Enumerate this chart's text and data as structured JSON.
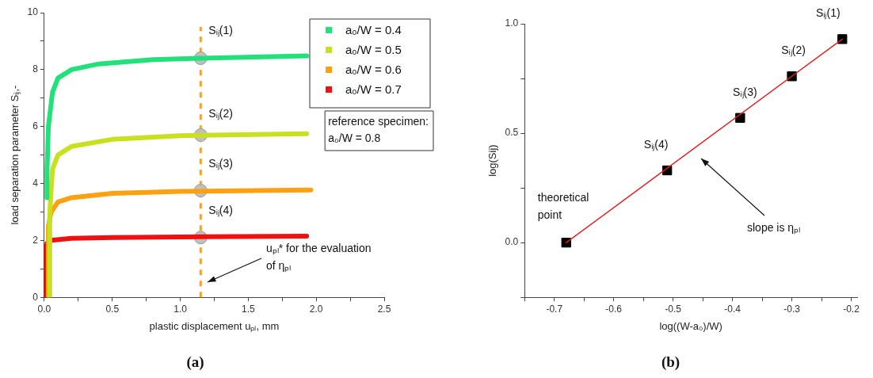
{
  "chart_data": [
    {
      "type": "line",
      "title": "(a)",
      "xlabel": "plastic displacement uₚₗ, mm",
      "ylabel": "load separation parameter Sᵢⱼ,-",
      "xlim": [
        0,
        2.5
      ],
      "xticks": [
        {
          "value": 0,
          "label": "0.0"
        },
        {
          "value": 0.25,
          "label": null
        },
        {
          "value": 0.5,
          "label": "0.5"
        },
        {
          "value": 0.75,
          "label": null
        },
        {
          "value": 1,
          "label": "1.0"
        },
        {
          "value": 1.25,
          "label": null
        },
        {
          "value": 1.5,
          "label": "1.5"
        },
        {
          "value": 1.75,
          "label": null
        },
        {
          "value": 2,
          "label": "2.0"
        },
        {
          "value": 2.25,
          "label": null
        },
        {
          "value": 2.5,
          "label": "2.5"
        }
      ],
      "ylim": [
        0,
        10
      ],
      "yticks": [
        0,
        {
          "value": 1,
          "label": null
        },
        2,
        {
          "value": 3,
          "label": null
        },
        4,
        {
          "value": 5,
          "label": null
        },
        6,
        {
          "value": 7,
          "label": null
        },
        8,
        {
          "value": 9,
          "label": null
        },
        10
      ],
      "grid": false,
      "legend": "top right",
      "marker": "none",
      "series": [
        {
          "name": "a₀/W = 0.4",
          "color": "#22e07a",
          "x": [
            0.02,
            0.02,
            0.03,
            0.06,
            0.1,
            0.2,
            0.4,
            0.8,
            1.15,
            1.93
          ],
          "values": [
            3.5,
            4.5,
            6,
            7.2,
            7.7,
            8.0,
            8.2,
            8.35,
            8.4,
            8.48
          ]
        },
        {
          "name": "a₀/W = 0.5",
          "color": "#c8e020",
          "x": [
            0.04,
            0.04,
            0.06,
            0.1,
            0.2,
            0.5,
            1.0,
            1.93
          ],
          "values": [
            0,
            3.0,
            4.5,
            5.0,
            5.3,
            5.55,
            5.68,
            5.75
          ]
        },
        {
          "name": "a₀/W = 0.6",
          "color": "#ffa010",
          "x": [
            0.03,
            0.03,
            0.05,
            0.1,
            0.2,
            0.5,
            1.0,
            1.96
          ],
          "values": [
            0,
            2.5,
            3.0,
            3.35,
            3.5,
            3.65,
            3.72,
            3.77
          ]
        },
        {
          "name": "a₀/W = 0.7",
          "color": "#f01010",
          "x": [
            0,
            0.005,
            0.02,
            0.05,
            0.2,
            0.5,
            1.0,
            1.93
          ],
          "values": [
            0,
            1.5,
            1.9,
            2.0,
            2.07,
            2.1,
            2.12,
            2.15
          ]
        },
        {
          "type": "scatter",
          "marker": "circle",
          "color": "#c0c0c0",
          "x": [
            1.15,
            1.15,
            1.15,
            1.15
          ],
          "values": [
            8.4,
            5.7,
            3.75,
            2.1
          ]
        }
      ],
      "ref_lines": [
        {
          "axis": "x",
          "value": 1.15,
          "color": "#f5a030",
          "line_style": "dashed"
        }
      ],
      "annotations": [
        {
          "text": "Sᵢⱼ(1)",
          "x": 1.15,
          "y": 8.4
        },
        {
          "text": "Sᵢⱼ(2)",
          "x": 1.15,
          "y": 5.7
        },
        {
          "text": "Sᵢⱼ(3)",
          "x": 1.15,
          "y": 3.75
        },
        {
          "text": "Sᵢⱼ(4)",
          "x": 1.15,
          "y": 2.1
        },
        "reference specimen:\na₀/W = 0.8",
        "uₚₗ* for the evaluation\nof ηₚₗ"
      ]
    },
    {
      "type": "scatter",
      "title": "(b)",
      "xlabel": "log((W-a₀)/W)",
      "ylabel": "log(Sij)",
      "xlim": [
        -0.75,
        -0.19
      ],
      "xticks": [
        {
          "value": -0.75,
          "label": null
        },
        -0.7,
        {
          "value": -0.65,
          "label": null
        },
        -0.6,
        {
          "value": -0.55,
          "label": null
        },
        -0.5,
        {
          "value": -0.45,
          "label": null
        },
        -0.4,
        {
          "value": -0.35,
          "label": null
        },
        -0.3,
        {
          "value": -0.25,
          "label": null
        },
        -0.2
      ],
      "ylim": [
        -0.25,
        1.0
      ],
      "yticks": [
        {
          "value": -0.25,
          "label": null
        },
        {
          "value": 0,
          "label": "0.0"
        },
        {
          "value": 0.25,
          "label": null
        },
        {
          "value": 0.5,
          "label": "0.5"
        },
        {
          "value": 0.75,
          "label": null
        },
        {
          "value": 1,
          "label": "1.0"
        }
      ],
      "grid": false,
      "marker": "square",
      "series": [
        {
          "type": "line",
          "marker": "none",
          "color": "#e02020",
          "x": [
            -0.68,
            -0.215
          ],
          "values": [
            0,
            0.93
          ]
        },
        {
          "color": "#000000",
          "x": [
            -0.68,
            -0.51,
            -0.387,
            -0.3,
            -0.215
          ],
          "values": [
            0,
            0.33,
            0.57,
            0.76,
            0.93
          ]
        }
      ],
      "annotations": [
        {
          "text": "Sᵢⱼ(1)",
          "x": -0.215,
          "y": 0.93
        },
        {
          "text": "Sᵢⱼ(2)",
          "x": -0.3,
          "y": 0.76
        },
        {
          "text": "Sᵢⱼ(3)",
          "x": -0.387,
          "y": 0.57
        },
        {
          "text": "Sᵢⱼ(4)",
          "x": -0.51,
          "y": 0.33
        },
        {
          "text": "theoretical\npoint",
          "x": -0.68,
          "y": 0
        },
        "slope is ηₚₗ"
      ]
    }
  ]
}
